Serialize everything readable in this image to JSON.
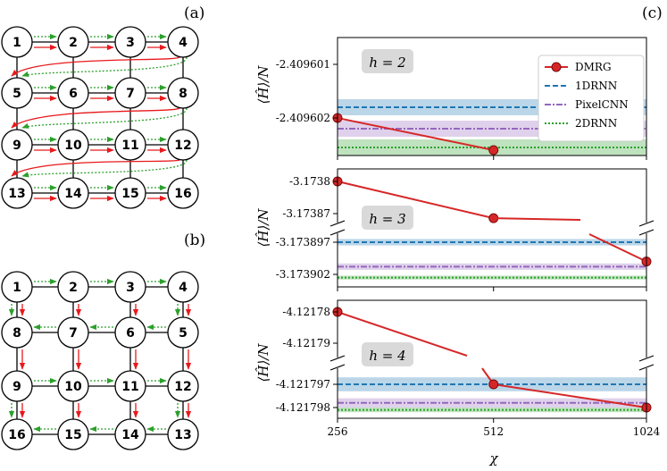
{
  "panel_labels": {
    "a": "(a)",
    "b": "(b)",
    "c": "(c)"
  },
  "colors": {
    "dmrg": "#d62728",
    "rnn1d": "#1f77b4",
    "pixelcnn": "#9467bd",
    "rnn2d": "#2ca02c",
    "arrow_red": "#e8191c",
    "arrow_green": "#2ca02c",
    "node_stroke": "#000000"
  },
  "lattice_a": {
    "rows": [
      [
        "1",
        "2",
        "3",
        "4"
      ],
      [
        "5",
        "6",
        "7",
        "8"
      ],
      [
        "9",
        "10",
        "11",
        "12"
      ],
      [
        "13",
        "14",
        "15",
        "16"
      ]
    ]
  },
  "lattice_b": {
    "rows": [
      [
        "1",
        "2",
        "3",
        "4"
      ],
      [
        "8",
        "7",
        "6",
        "5"
      ],
      [
        "9",
        "10",
        "11",
        "12"
      ],
      [
        "16",
        "15",
        "14",
        "13"
      ]
    ]
  },
  "chart_data": [
    {
      "type": "line",
      "panel": "h2",
      "annotation": "h = 2",
      "ylabel": "⟨Ĥ⟩/N",
      "x": [
        256,
        512,
        1024
      ],
      "xticks": [
        "256",
        "512",
        "1024"
      ],
      "yticks": [
        -2.409601,
        -2.409602
      ],
      "ytick_labels": [
        "-2.409601",
        "-2.409602"
      ],
      "ylim": [
        -2.4096027,
        -2.4096005
      ],
      "series": [
        {
          "name": "DMRG",
          "style": "line-marker",
          "x": [
            256,
            512
          ],
          "y": [
            -2.409602,
            -2.4096026
          ]
        },
        {
          "name": "1DRNN",
          "style": "dashed",
          "y": -2.4096018,
          "band": [
            -2.40960195,
            -2.40960165
          ]
        },
        {
          "name": "PixelCNN",
          "style": "dashdot",
          "y": -2.4096022,
          "band": [
            -2.40960235,
            -2.40960205
          ]
        },
        {
          "name": "2DRNN",
          "style": "dotted",
          "y": -2.40960255,
          "band": [
            -2.4096027,
            -2.4096024
          ]
        }
      ],
      "legend": {
        "placement": "top-right",
        "entries": [
          "DMRG",
          "1DRNN",
          "PixelCNN",
          "2DRNN"
        ]
      }
    },
    {
      "type": "line",
      "panel": "h3",
      "annotation": "h = 3",
      "ylabel": "⟨Ĥ⟩/N",
      "broken_axis": true,
      "x": [
        256,
        512,
        1024
      ],
      "xticks": [
        "256",
        "512",
        "1024"
      ],
      "yticks_upper": [
        -3.1738,
        -3.17387
      ],
      "ytick_labels_upper": [
        "-3.1738",
        "-3.17387"
      ],
      "yticks_lower": [
        -3.173897,
        -3.173902
      ],
      "ytick_labels_lower": [
        "-3.173897",
        "-3.173902"
      ],
      "series": [
        {
          "name": "DMRG",
          "style": "line-marker",
          "x": [
            256,
            512,
            1024
          ],
          "y": [
            -3.1738,
            -3.17388,
            -3.1739
          ]
        },
        {
          "name": "1DRNN",
          "style": "dashed",
          "y": -3.173897,
          "band": [
            -3.1738975,
            -3.1738965
          ]
        },
        {
          "name": "PixelCNN",
          "style": "dashdot",
          "y": -3.1739008,
          "band": [
            -3.1739013,
            -3.1739003
          ]
        },
        {
          "name": "2DRNN",
          "style": "dotted",
          "y": -3.1739025,
          "band": [
            -3.1739028,
            -3.1739022
          ]
        }
      ]
    },
    {
      "type": "line",
      "panel": "h4",
      "annotation": "h = 4",
      "ylabel": "⟨Ĥ⟩/N",
      "xlabel": "χ",
      "broken_axis": true,
      "x": [
        256,
        512,
        1024
      ],
      "xticks": [
        "256",
        "512",
        "1024"
      ],
      "yticks_upper": [
        -4.12178,
        -4.12179
      ],
      "ytick_labels_upper": [
        "-4.12178",
        "-4.12179"
      ],
      "yticks_lower": [
        -4.121797,
        -4.121798
      ],
      "ytick_labels_lower": [
        "-4.121797",
        "-4.121798"
      ],
      "series": [
        {
          "name": "DMRG",
          "style": "line-marker",
          "x": [
            256,
            512,
            1024
          ],
          "y": [
            -4.12178,
            -4.121797,
            -4.121798
          ]
        },
        {
          "name": "1DRNN",
          "style": "dashed",
          "y": -4.121797,
          "band": [
            -4.1217973,
            -4.1217967
          ]
        },
        {
          "name": "PixelCNN",
          "style": "dashdot",
          "y": -4.1217978,
          "band": [
            -4.121798,
            -4.1217976
          ]
        },
        {
          "name": "2DRNN",
          "style": "dotted",
          "y": -4.1217981,
          "band": [
            -4.1217982,
            -4.121798
          ]
        }
      ]
    }
  ]
}
